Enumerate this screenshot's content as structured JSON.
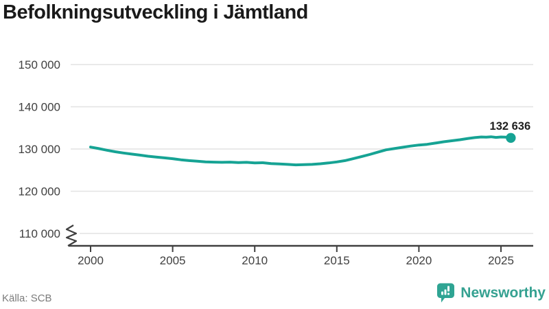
{
  "footer": {
    "source": "Källa: SCB",
    "brand": "Newsworthy"
  },
  "colors": {
    "line": "#16a394",
    "brand_teal": "#35a191",
    "grid": "#e2e2e2",
    "axis": "#3f3f3f",
    "title_text": "#1a1a1a",
    "tick_text": "#404040",
    "muted_text": "#7b7b7b",
    "label_text": "#1f1f1f"
  },
  "chart_data": {
    "type": "line",
    "title": "Befolkningsutveckling i Jämtland",
    "xlabel": "",
    "ylabel": "",
    "grid": true,
    "legend": false,
    "axis_break": true,
    "xlim": [
      1999.3,
      2027
    ],
    "ylim": [
      110000,
      152000
    ],
    "xticks": {
      "values": [
        2000,
        2005,
        2010,
        2015,
        2020,
        2025
      ],
      "labels": [
        "2000",
        "2005",
        "2010",
        "2015",
        "2020",
        "2025"
      ]
    },
    "yticks": {
      "values": [
        110000,
        120000,
        130000,
        140000,
        150000
      ],
      "labels": [
        "110 000",
        "120 000",
        "130 000",
        "140 000",
        "150 000"
      ]
    },
    "series": [
      {
        "name": "Befolkning i Jämtland",
        "points": [
          [
            2000.0,
            130450
          ],
          [
            2000.5,
            130100
          ],
          [
            2001.0,
            129700
          ],
          [
            2001.5,
            129350
          ],
          [
            2002.0,
            129050
          ],
          [
            2002.5,
            128800
          ],
          [
            2003.0,
            128550
          ],
          [
            2003.5,
            128300
          ],
          [
            2004.0,
            128100
          ],
          [
            2004.5,
            127900
          ],
          [
            2005.0,
            127700
          ],
          [
            2005.5,
            127450
          ],
          [
            2006.0,
            127250
          ],
          [
            2006.5,
            127100
          ],
          [
            2007.0,
            126950
          ],
          [
            2007.5,
            126900
          ],
          [
            2008.0,
            126850
          ],
          [
            2008.5,
            126900
          ],
          [
            2009.0,
            126800
          ],
          [
            2009.5,
            126850
          ],
          [
            2010.0,
            126700
          ],
          [
            2010.5,
            126750
          ],
          [
            2011.0,
            126550
          ],
          [
            2011.5,
            126450
          ],
          [
            2012.0,
            126350
          ],
          [
            2012.5,
            126250
          ],
          [
            2013.0,
            126300
          ],
          [
            2013.5,
            126350
          ],
          [
            2014.0,
            126500
          ],
          [
            2014.5,
            126700
          ],
          [
            2015.0,
            126950
          ],
          [
            2015.5,
            127250
          ],
          [
            2016.0,
            127700
          ],
          [
            2016.5,
            128200
          ],
          [
            2017.0,
            128700
          ],
          [
            2017.5,
            129250
          ],
          [
            2018.0,
            129800
          ],
          [
            2018.5,
            130100
          ],
          [
            2019.0,
            130400
          ],
          [
            2019.5,
            130700
          ],
          [
            2020.0,
            130950
          ],
          [
            2020.5,
            131100
          ],
          [
            2021.0,
            131400
          ],
          [
            2021.5,
            131700
          ],
          [
            2022.0,
            131950
          ],
          [
            2022.5,
            132200
          ],
          [
            2023.0,
            132500
          ],
          [
            2023.4,
            132700
          ],
          [
            2023.8,
            132850
          ],
          [
            2024.1,
            132800
          ],
          [
            2024.4,
            132900
          ],
          [
            2024.7,
            132750
          ],
          [
            2025.0,
            132850
          ],
          [
            2025.3,
            132800
          ],
          [
            2025.6,
            132636
          ]
        ]
      }
    ],
    "end_point": {
      "x": 2025.6,
      "value": 132636,
      "label": "132 636"
    }
  }
}
